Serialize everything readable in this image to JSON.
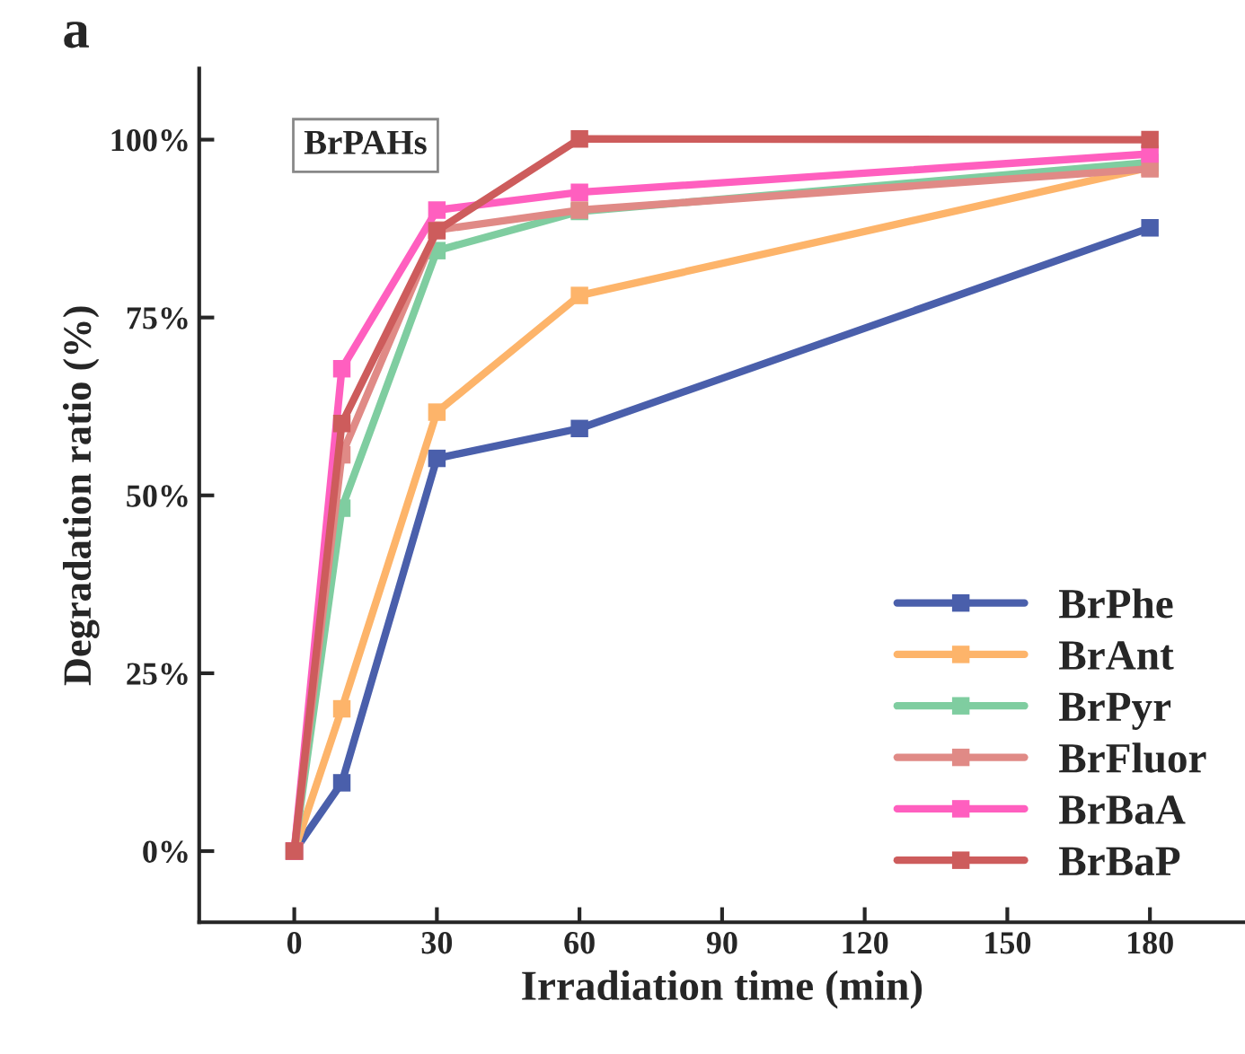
{
  "chart_data": {
    "type": "line",
    "title": "a",
    "xlabel": "Irradiation time (min)",
    "ylabel": "Degradation ratio (%)",
    "annotations": [
      "BrPAHs"
    ],
    "x": [
      0,
      10,
      30,
      60,
      180
    ],
    "series": [
      {
        "name": "BrPhe",
        "color": "#4a5fab",
        "values": [
          0,
          9.6,
          55.2,
          59.4,
          87.6
        ]
      },
      {
        "name": "BrAnt",
        "color": "#fdb46a",
        "values": [
          0,
          20.0,
          61.7,
          78.1,
          96.1
        ]
      },
      {
        "name": "BrPyr",
        "color": "#7fcda0",
        "values": [
          0,
          48.2,
          84.4,
          89.9,
          96.8
        ]
      },
      {
        "name": "BrFluor",
        "color": "#e08a86",
        "values": [
          0,
          55.7,
          87.3,
          90.1,
          95.9
        ]
      },
      {
        "name": "BrBaA",
        "color": "#ff5fbf",
        "values": [
          0,
          67.8,
          90.1,
          92.6,
          98.0
        ]
      },
      {
        "name": "BrBaP",
        "color": "#cd5c5c",
        "values": [
          0,
          60.1,
          87.2,
          100.1,
          100
        ]
      }
    ],
    "xlim": [
      -20,
      200
    ],
    "xticks": [
      0,
      30,
      60,
      90,
      120,
      150,
      180
    ],
    "ylim": [
      -10,
      110
    ],
    "yticks": [
      {
        "value": 0,
        "label": "0%"
      },
      {
        "value": 25,
        "label": "25%"
      },
      {
        "value": 50,
        "label": "50%"
      },
      {
        "value": 75,
        "label": "75%"
      },
      {
        "value": 100,
        "label": "100%"
      }
    ],
    "marker": "square",
    "line_style": "solid",
    "legend": "bottom right",
    "grid": false
  }
}
